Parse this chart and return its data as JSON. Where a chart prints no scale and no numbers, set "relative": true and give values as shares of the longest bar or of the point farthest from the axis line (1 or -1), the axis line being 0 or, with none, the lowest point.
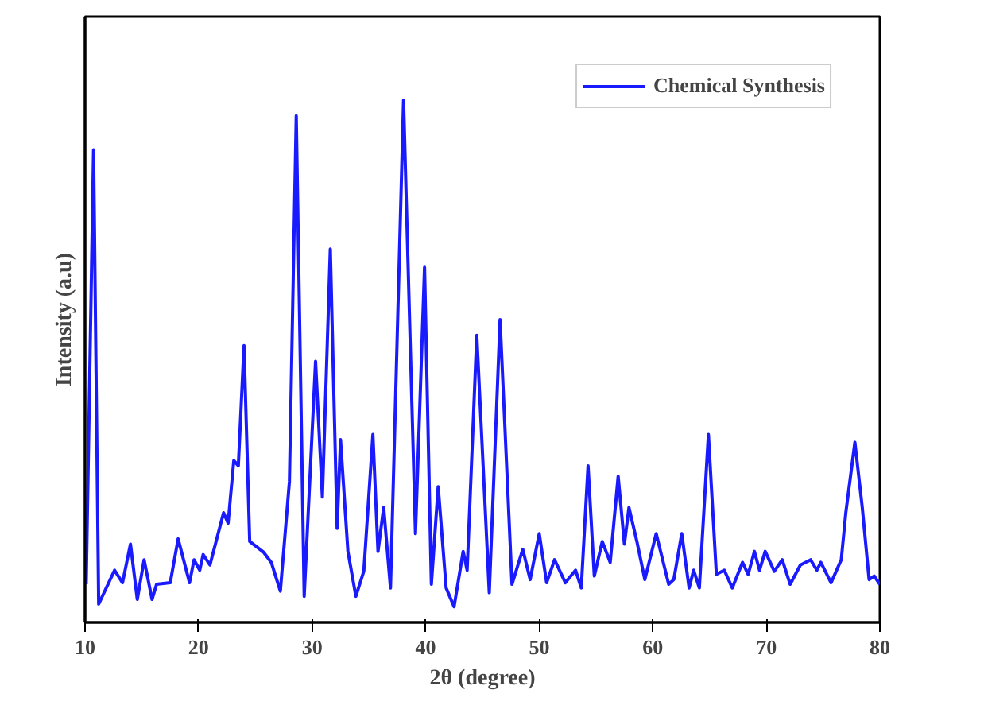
{
  "chart_data": {
    "type": "line",
    "relative": true,
    "xlabel": "2θ (degree)",
    "ylabel": "Intensity (a.u)",
    "xlim": [
      10,
      80
    ],
    "xticks": [
      10,
      20,
      30,
      40,
      50,
      60,
      70,
      80
    ],
    "grid": false,
    "legend": "top right",
    "marker": "none",
    "line_style": "solid",
    "series": [
      {
        "name": "Chemical Synthesis",
        "color": "#1a1aff",
        "x": [
          10.1,
          10.75,
          11.2,
          12.6,
          13.3,
          14.0,
          14.6,
          15.2,
          15.9,
          16.3,
          17.5,
          18.2,
          19.2,
          19.6,
          20.1,
          20.4,
          21.0,
          22.2,
          22.6,
          23.1,
          23.5,
          24.0,
          24.5,
          25.7,
          26.4,
          27.2,
          28.0,
          28.6,
          29.3,
          30.3,
          30.9,
          31.6,
          32.2,
          32.5,
          33.15,
          33.85,
          34.55,
          35.35,
          35.8,
          36.3,
          36.9,
          38.05,
          39.1,
          39.9,
          40.5,
          41.1,
          41.8,
          42.5,
          43.3,
          43.65,
          44.5,
          45.6,
          46.55,
          47.6,
          48.55,
          49.2,
          50.0,
          50.65,
          51.35,
          52.3,
          53.2,
          53.7,
          54.3,
          54.85,
          55.55,
          56.25,
          56.95,
          57.5,
          57.9,
          58.6,
          59.3,
          60.3,
          61.4,
          61.85,
          62.55,
          63.2,
          63.6,
          64.1,
          64.9,
          65.6,
          66.3,
          67.0,
          67.9,
          68.4,
          68.95,
          69.4,
          69.9,
          70.7,
          71.4,
          72.1,
          73.0,
          73.9,
          74.45,
          74.8,
          75.7,
          76.6,
          77.0,
          77.8,
          78.45,
          79.05,
          79.5,
          80.0
        ],
        "values": [
          0.073,
          0.905,
          0.035,
          0.1,
          0.076,
          0.15,
          0.044,
          0.12,
          0.044,
          0.073,
          0.076,
          0.16,
          0.076,
          0.12,
          0.1,
          0.13,
          0.11,
          0.21,
          0.19,
          0.31,
          0.3,
          0.53,
          0.155,
          0.135,
          0.115,
          0.06,
          0.27,
          0.97,
          0.05,
          0.5,
          0.24,
          0.715,
          0.18,
          0.35,
          0.136,
          0.05,
          0.098,
          0.36,
          0.136,
          0.22,
          0.066,
          1.0,
          0.17,
          0.68,
          0.073,
          0.26,
          0.066,
          0.03,
          0.136,
          0.1,
          0.55,
          0.057,
          0.58,
          0.073,
          0.14,
          0.082,
          0.17,
          0.076,
          0.12,
          0.076,
          0.1,
          0.066,
          0.3,
          0.089,
          0.155,
          0.115,
          0.28,
          0.15,
          0.22,
          0.155,
          0.082,
          0.17,
          0.073,
          0.082,
          0.17,
          0.066,
          0.1,
          0.066,
          0.36,
          0.092,
          0.1,
          0.066,
          0.115,
          0.092,
          0.136,
          0.1,
          0.136,
          0.098,
          0.12,
          0.073,
          0.11,
          0.12,
          0.1,
          0.115,
          0.076,
          0.12,
          0.21,
          0.345,
          0.22,
          0.082,
          0.089,
          0.073
        ]
      }
    ]
  }
}
